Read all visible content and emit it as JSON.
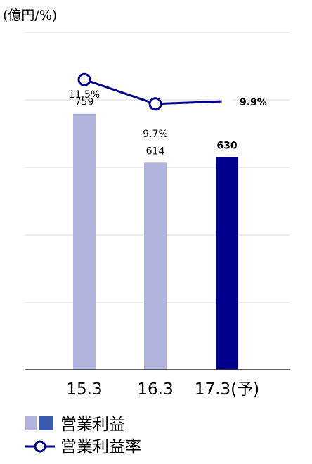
{
  "chart_data": {
    "type": "bar+line",
    "unit_label": "(億円/%)",
    "categories": [
      "15.3",
      "16.3",
      "17.3(予)"
    ],
    "series": [
      {
        "name": "営業利益",
        "kind": "bar",
        "values": [
          759,
          614,
          630
        ],
        "value_labels": [
          "759",
          "614",
          "630"
        ]
      },
      {
        "name": "営業利益率",
        "kind": "line",
        "values": [
          11.5,
          9.7,
          9.9
        ],
        "value_labels": [
          "11.5%",
          "9.7%",
          "9.9%"
        ]
      }
    ],
    "bar_ylim": [
      0,
      1000
    ],
    "rate_ylim": [
      -10.0,
      15.0
    ],
    "gridlines": true,
    "legend_position": "bottom-left",
    "colors": {
      "bar_actual": "#b1b3dd",
      "bar_forecast": "#00008c",
      "line": "#00008c",
      "marker_fill": "#ffffff",
      "grid": "#d9d9d9",
      "axis": "#333333",
      "legend_bar_light": "#b1b3dd",
      "legend_bar_dark": "#3a5aab"
    }
  }
}
